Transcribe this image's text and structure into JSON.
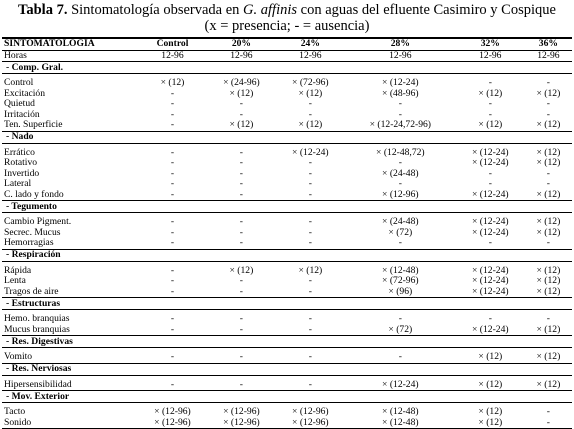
{
  "title": {
    "label": "Tabla 7.",
    "text_a": "Sintomatología observada en ",
    "species": "G. affinis",
    "text_b": " con aguas del efluente Casimiro y Cospique",
    "subtitle": "(x = presencia; - = ausencia)"
  },
  "table": {
    "columns": [
      "SINTOMATOLOGÍA",
      "Control",
      "20%",
      "24%",
      "28%",
      "32%",
      "36%"
    ],
    "hours": [
      "Horas",
      "12-96",
      "12-96",
      "12-96",
      "12-96",
      "12-96",
      "12-96"
    ],
    "sections": [
      {
        "title": "- Comp. Gral.",
        "rows": [
          [
            "Control",
            "× (12)",
            "× (24-96)",
            "× (72-96)",
            "× (12-24)",
            "-",
            "-"
          ],
          [
            "Excitación",
            "-",
            "× (12)",
            "× (12)",
            "× (48-96)",
            "× (12)",
            "× (12)"
          ],
          [
            "Quietud",
            "-",
            "-",
            "-",
            "-",
            "-",
            "-"
          ],
          [
            "Irritación",
            "-",
            "-",
            "-",
            "-",
            "-",
            "-"
          ],
          [
            "Ten. Superficie",
            "-",
            "× (12)",
            "× (12)",
            "× (12-24,72-96)",
            "× (12)",
            "× (12)"
          ]
        ]
      },
      {
        "title": "- Nado",
        "rows": [
          [
            "Errático",
            "-",
            "-",
            "× (12-24)",
            "× (12-48,72)",
            "× (12-24)",
            "× (12)"
          ],
          [
            "Rotativo",
            "-",
            "-",
            "-",
            "-",
            "× (12-24)",
            "× (12)"
          ],
          [
            "Invertido",
            "-",
            "-",
            "-",
            "× (24-48)",
            "-",
            "-"
          ],
          [
            "Lateral",
            "-",
            "-",
            "-",
            "-",
            "-",
            "-"
          ],
          [
            "C. lado y fondo",
            "-",
            "-",
            "-",
            "× (12-96)",
            "× (12-24)",
            "× (12)"
          ]
        ]
      },
      {
        "title": "- Tegumento",
        "rows": [
          [
            "Cambio Pigment.",
            "-",
            "-",
            "-",
            "× (24-48)",
            "× (12-24)",
            "× (12)"
          ],
          [
            "Secrec. Mucus",
            "-",
            "-",
            "-",
            "× (72)",
            "× (12-24)",
            "× (12)"
          ],
          [
            "Hemorragias",
            "-",
            "-",
            "-",
            "-",
            "-",
            "-"
          ]
        ]
      },
      {
        "title": "- Respiración",
        "rows": [
          [
            "Rápida",
            "-",
            "× (12)",
            "× (12)",
            "× (12-48)",
            "× (12-24)",
            "× (12)"
          ],
          [
            "Lenta",
            "-",
            "-",
            "-",
            "× (72-96)",
            "× (12-24)",
            "× (12)"
          ],
          [
            "Tragos de aire",
            "-",
            "-",
            "-",
            "× (96)",
            "× (12-24)",
            "× (12)"
          ]
        ]
      },
      {
        "title": "- Estructuras",
        "rows": [
          [
            "Hemo. branquias",
            "-",
            "-",
            "-",
            "-",
            "-",
            "-"
          ],
          [
            "Mucus branquias",
            "-",
            "-",
            "-",
            "× (72)",
            "× (12-24)",
            "× (12)"
          ]
        ]
      },
      {
        "title": "- Res. Digestivas",
        "rows": [
          [
            "Vomito",
            "-",
            "-",
            "-",
            "-",
            "× (12)",
            "× (12)"
          ]
        ]
      },
      {
        "title": "- Res. Nerviosas",
        "rows": [
          [
            "Hipersensibilidad",
            "-",
            "-",
            "-",
            "× (12-24)",
            "× (12)",
            "× (12)"
          ]
        ]
      },
      {
        "title": "- Mov. Exterior",
        "rows": [
          [
            "Tacto",
            "× (12-96)",
            "× (12-96)",
            "× (12-96)",
            "× (12-48)",
            "× (12)",
            "-"
          ],
          [
            "Sonido",
            "× (12-96)",
            "× (12-96)",
            "× (12-96)",
            "× (12-48)",
            "× (12)",
            "-"
          ]
        ]
      }
    ]
  }
}
